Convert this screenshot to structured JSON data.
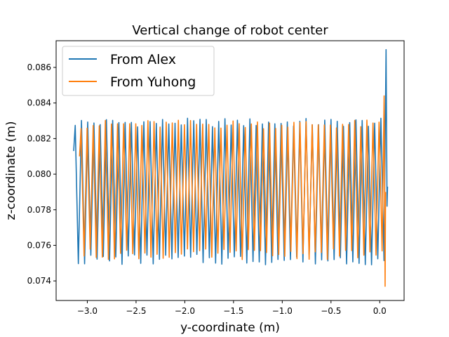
{
  "chart_data": {
    "type": "line",
    "title": "Vertical change of robot center",
    "xlabel": "y-coordinate (m)",
    "ylabel": "z-coordinate (m)",
    "xlim": [
      -3.32,
      0.25
    ],
    "ylim": [
      0.0729,
      0.0875
    ],
    "xticks": [
      -3.0,
      -2.5,
      -2.0,
      -1.5,
      -1.0,
      -0.5,
      0.0
    ],
    "xtick_labels": [
      "−3.0",
      "−2.5",
      "−2.0",
      "−1.5",
      "−1.0",
      "−0.5",
      "0.0"
    ],
    "yticks": [
      0.074,
      0.076,
      0.078,
      0.08,
      0.082,
      0.084,
      0.086
    ],
    "ytick_labels": [
      "0.074",
      "0.076",
      "0.078",
      "0.080",
      "0.082",
      "0.084",
      "0.086"
    ],
    "grid": false,
    "legend": "top-left",
    "series": [
      {
        "name": "From Alex",
        "color": "#1f77b4",
        "description_values": {
          "x_start": -3.14,
          "x_end": 0.08,
          "cycles": 50,
          "peak_z_typical": 0.0829,
          "trough_z_typical": 0.0752,
          "start_z": 0.0813,
          "end_spike_max": 0.087,
          "end_spike_min": 0.0782,
          "end_z": 0.0793
        }
      },
      {
        "name": "From Yuhong",
        "color": "#ff7f0e",
        "description_values": {
          "x_start": -3.08,
          "x_end": 0.06,
          "cycles": 50,
          "peak_z_typical": 0.0828,
          "trough_z_typical": 0.0755,
          "start_z": 0.081,
          "end_spike_max": 0.0844,
          "end_spike_min": 0.0737,
          "end_z": 0.079
        }
      }
    ]
  }
}
